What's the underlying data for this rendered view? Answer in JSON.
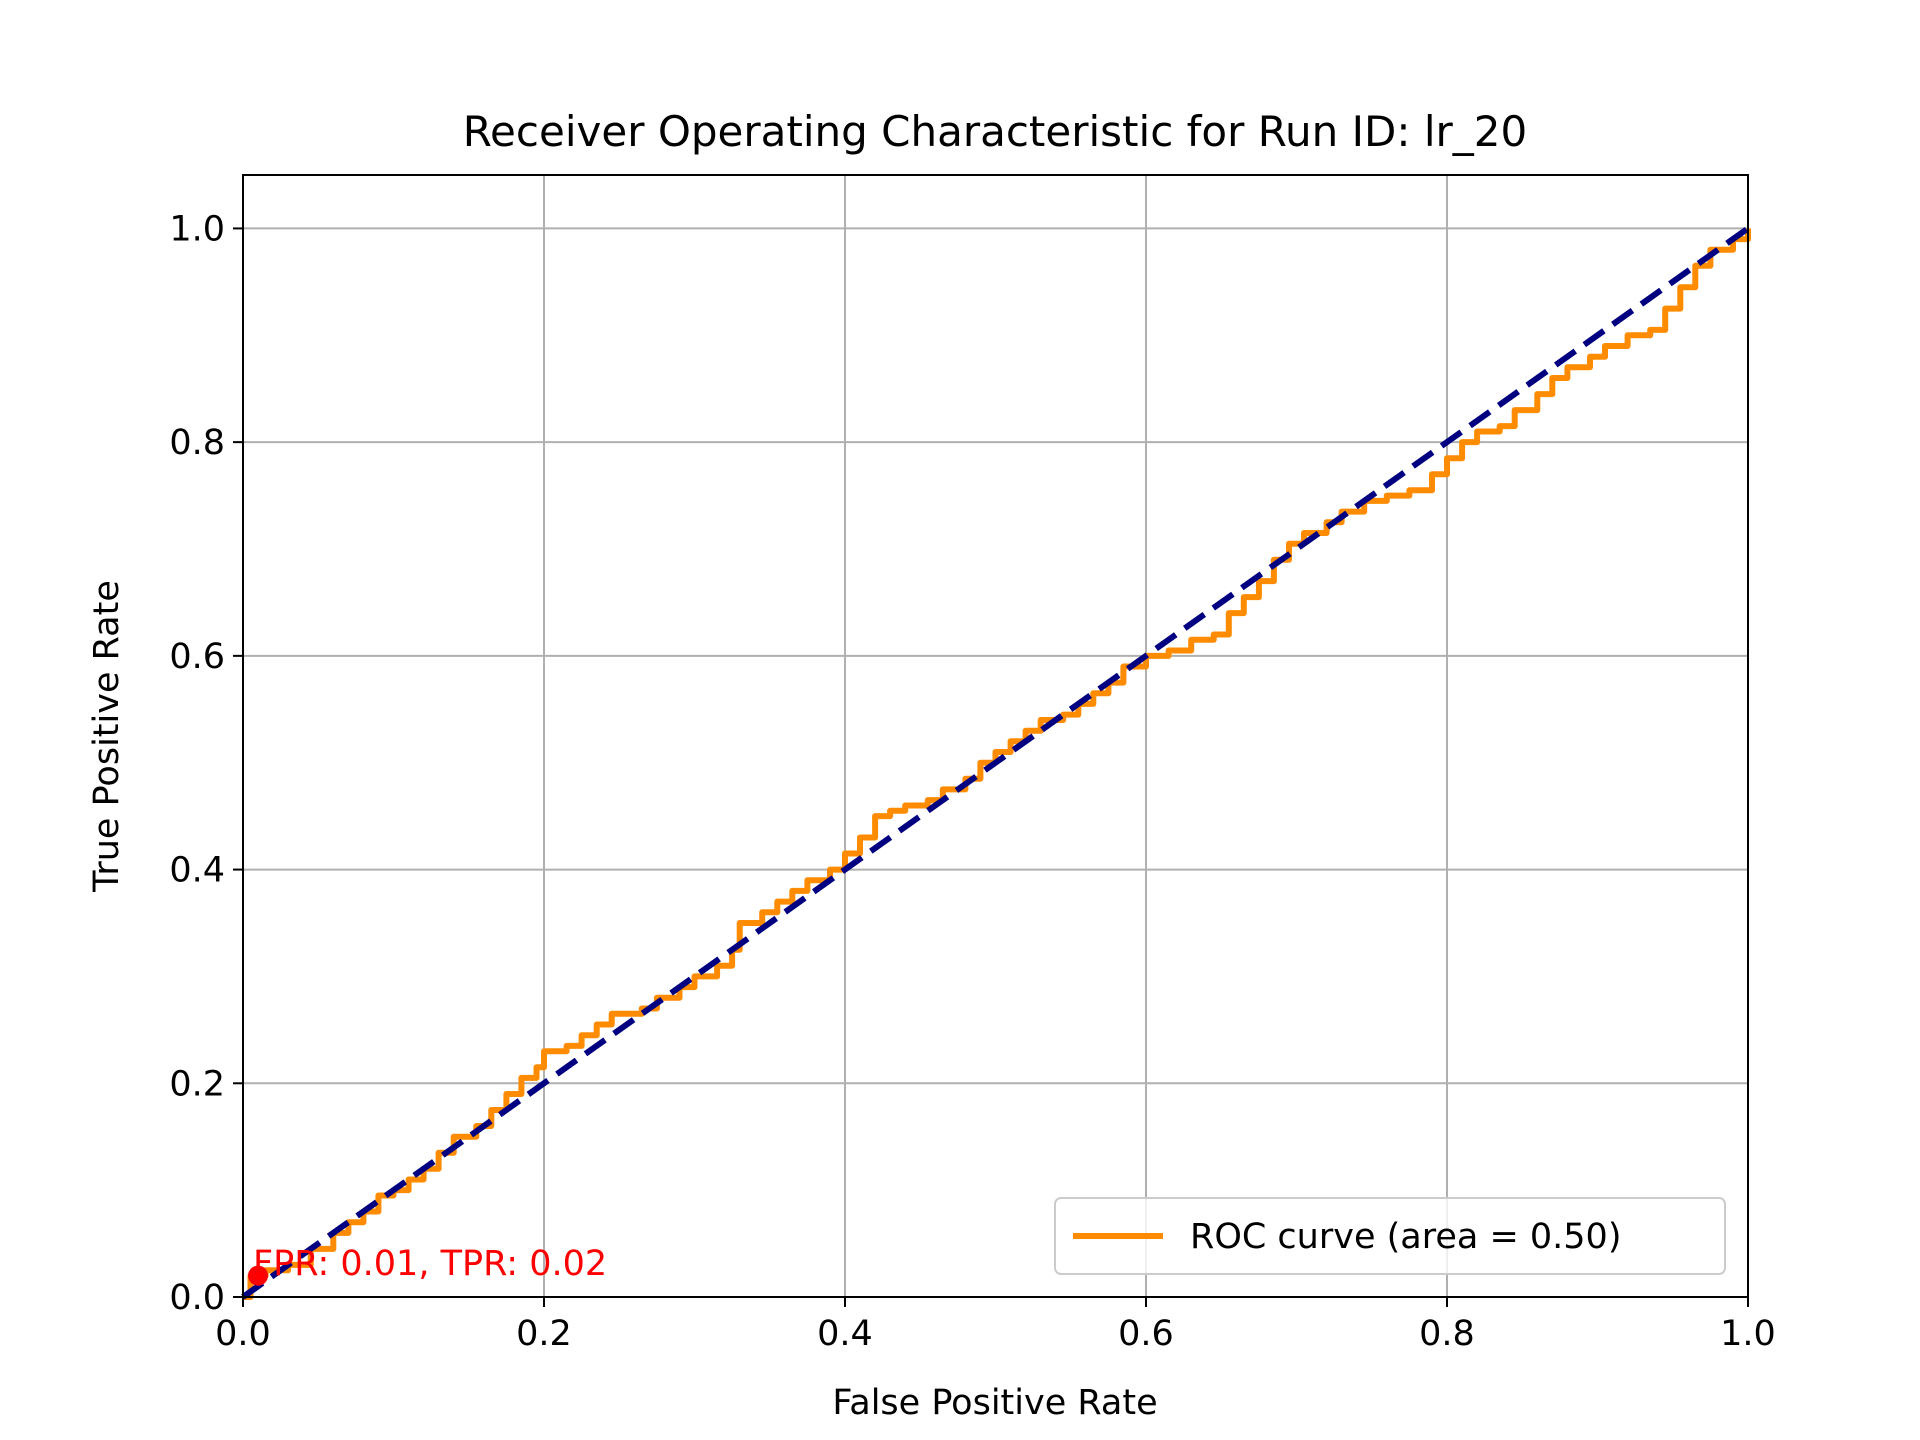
{
  "chart_data": {
    "type": "line",
    "title": "Receiver Operating Characteristic for Run ID: lr_20",
    "xlabel": "False Positive Rate",
    "ylabel": "True Positive Rate",
    "xlim": [
      0.0,
      1.0
    ],
    "ylim": [
      0.0,
      1.05
    ],
    "grid": true,
    "legend_position": "bottom-right",
    "x_ticks": [
      "0.0",
      "0.2",
      "0.4",
      "0.6",
      "0.8",
      "1.0"
    ],
    "y_ticks": [
      "0.0",
      "0.2",
      "0.4",
      "0.6",
      "0.8",
      "1.0"
    ],
    "series": [
      {
        "name": "ROC curve (area = 0.50)",
        "color": "#ff8c00",
        "style": "solid",
        "points": [
          [
            0.0,
            0.0
          ],
          [
            0.005,
            0.02
          ],
          [
            0.015,
            0.025
          ],
          [
            0.03,
            0.03
          ],
          [
            0.045,
            0.045
          ],
          [
            0.06,
            0.06
          ],
          [
            0.07,
            0.07
          ],
          [
            0.08,
            0.08
          ],
          [
            0.09,
            0.095
          ],
          [
            0.1,
            0.1
          ],
          [
            0.11,
            0.11
          ],
          [
            0.12,
            0.12
          ],
          [
            0.13,
            0.135
          ],
          [
            0.14,
            0.15
          ],
          [
            0.155,
            0.16
          ],
          [
            0.165,
            0.175
          ],
          [
            0.175,
            0.19
          ],
          [
            0.185,
            0.205
          ],
          [
            0.195,
            0.215
          ],
          [
            0.2,
            0.23
          ],
          [
            0.215,
            0.235
          ],
          [
            0.225,
            0.245
          ],
          [
            0.235,
            0.255
          ],
          [
            0.245,
            0.265
          ],
          [
            0.265,
            0.27
          ],
          [
            0.275,
            0.28
          ],
          [
            0.29,
            0.29
          ],
          [
            0.3,
            0.3
          ],
          [
            0.315,
            0.31
          ],
          [
            0.325,
            0.325
          ],
          [
            0.33,
            0.35
          ],
          [
            0.345,
            0.36
          ],
          [
            0.355,
            0.37
          ],
          [
            0.365,
            0.38
          ],
          [
            0.375,
            0.39
          ],
          [
            0.39,
            0.4
          ],
          [
            0.4,
            0.415
          ],
          [
            0.41,
            0.43
          ],
          [
            0.42,
            0.45
          ],
          [
            0.43,
            0.455
          ],
          [
            0.44,
            0.46
          ],
          [
            0.455,
            0.465
          ],
          [
            0.465,
            0.475
          ],
          [
            0.48,
            0.485
          ],
          [
            0.49,
            0.5
          ],
          [
            0.5,
            0.51
          ],
          [
            0.51,
            0.52
          ],
          [
            0.52,
            0.53
          ],
          [
            0.53,
            0.54
          ],
          [
            0.545,
            0.545
          ],
          [
            0.555,
            0.555
          ],
          [
            0.565,
            0.565
          ],
          [
            0.575,
            0.575
          ],
          [
            0.585,
            0.59
          ],
          [
            0.6,
            0.6
          ],
          [
            0.615,
            0.605
          ],
          [
            0.63,
            0.615
          ],
          [
            0.645,
            0.62
          ],
          [
            0.655,
            0.64
          ],
          [
            0.665,
            0.655
          ],
          [
            0.675,
            0.67
          ],
          [
            0.685,
            0.69
          ],
          [
            0.695,
            0.705
          ],
          [
            0.705,
            0.715
          ],
          [
            0.72,
            0.725
          ],
          [
            0.73,
            0.735
          ],
          [
            0.745,
            0.745
          ],
          [
            0.76,
            0.75
          ],
          [
            0.775,
            0.755
          ],
          [
            0.79,
            0.77
          ],
          [
            0.8,
            0.785
          ],
          [
            0.81,
            0.8
          ],
          [
            0.82,
            0.81
          ],
          [
            0.835,
            0.815
          ],
          [
            0.845,
            0.83
          ],
          [
            0.86,
            0.845
          ],
          [
            0.87,
            0.86
          ],
          [
            0.88,
            0.87
          ],
          [
            0.895,
            0.88
          ],
          [
            0.905,
            0.89
          ],
          [
            0.92,
            0.9
          ],
          [
            0.935,
            0.905
          ],
          [
            0.945,
            0.925
          ],
          [
            0.955,
            0.945
          ],
          [
            0.965,
            0.965
          ],
          [
            0.975,
            0.98
          ],
          [
            0.99,
            0.99
          ],
          [
            1.0,
            1.0
          ]
        ]
      },
      {
        "name": "",
        "color": "#000080",
        "style": "dashed",
        "points": [
          [
            0.0,
            0.0
          ],
          [
            1.0,
            1.0
          ]
        ]
      }
    ],
    "highlight_point": {
      "x": 0.01,
      "y": 0.02,
      "color": "#ff0000",
      "label": "FPR: 0.01, TPR: 0.02"
    }
  }
}
